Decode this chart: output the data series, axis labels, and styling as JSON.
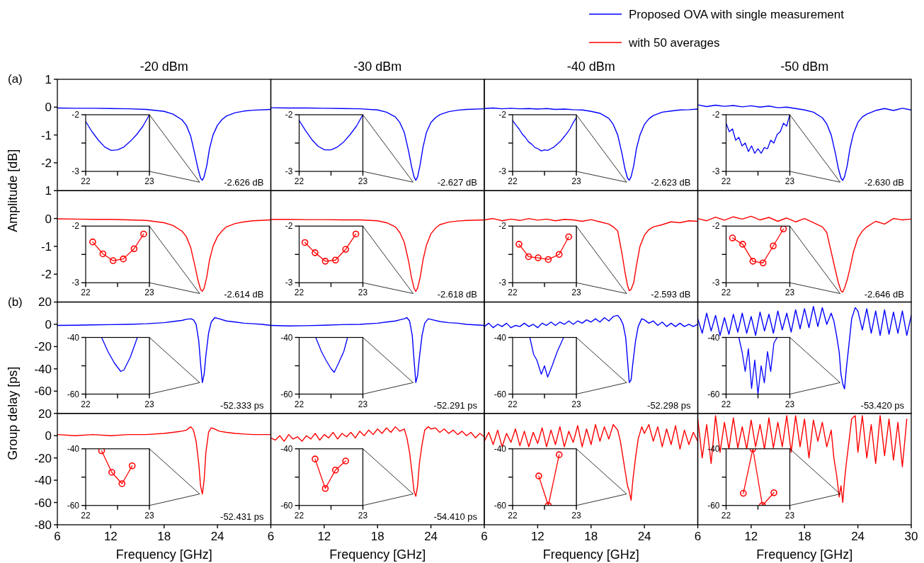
{
  "chart_data": [
    {
      "type": "line",
      "title": "-20 dBm",
      "ylabel": "Amplitude [dB]",
      "legend": "top right",
      "x": [
        6,
        8,
        10,
        12,
        14,
        16,
        18,
        19,
        20,
        20.5,
        21,
        21.5,
        21.8,
        22.1,
        22.3,
        22.5,
        22.8,
        23.1,
        23.5,
        24,
        24.5,
        25,
        26,
        27,
        28,
        30
      ],
      "series": [
        {
          "name": "Proposed OVA with single measurement",
          "color": "#0000ff",
          "values": [
            -0.03,
            -0.04,
            -0.04,
            -0.05,
            -0.06,
            -0.08,
            -0.15,
            -0.25,
            -0.45,
            -0.65,
            -1.05,
            -1.75,
            -2.2,
            -2.55,
            -2.626,
            -2.5,
            -2.1,
            -1.5,
            -1.0,
            -0.65,
            -0.45,
            -0.32,
            -0.2,
            -0.14,
            -0.11,
            -0.08
          ]
        }
      ],
      "xlim": [
        6,
        30
      ],
      "ylim": [
        -3,
        1
      ],
      "yticks": [
        1,
        0,
        -1,
        -2
      ],
      "tick_labels": "y",
      "annotations": [
        "(a)",
        "-2.626 dB"
      ]
    },
    {
      "type": "line",
      "x": [
        22,
        22.1,
        22.2,
        22.3,
        22.4,
        22.5,
        22.6,
        22.7,
        22.8,
        22.9,
        23
      ],
      "series": [
        {
          "color": "#0000ff",
          "values": [
            -2.12,
            -2.3,
            -2.45,
            -2.57,
            -2.63,
            -2.62,
            -2.57,
            -2.47,
            -2.35,
            -2.2,
            -2.0
          ]
        }
      ],
      "xlim": [
        22,
        23
      ],
      "ylim": [
        -3,
        -2
      ],
      "xticks": [
        22,
        23
      ],
      "yticks": [
        -2,
        -3
      ]
    },
    {
      "type": "line",
      "title": "-30 dBm",
      "x": [
        6,
        8,
        10,
        12,
        14,
        16,
        18,
        19,
        20,
        20.5,
        21,
        21.5,
        21.8,
        22.1,
        22.3,
        22.5,
        22.8,
        23.1,
        23.5,
        24,
        24.5,
        25,
        26,
        27,
        28,
        30
      ],
      "series": [
        {
          "color": "#0000ff",
          "values": [
            -0.02,
            -0.03,
            -0.03,
            -0.04,
            -0.05,
            -0.06,
            -0.1,
            -0.18,
            -0.35,
            -0.55,
            -0.9,
            -1.6,
            -2.1,
            -2.5,
            -2.627,
            -2.5,
            -2.05,
            -1.45,
            -0.9,
            -0.55,
            -0.38,
            -0.27,
            -0.16,
            -0.11,
            -0.08,
            -0.06
          ]
        }
      ],
      "xlim": [
        6,
        30
      ],
      "ylim": [
        -3,
        1
      ],
      "tick_labels": false,
      "annotations": [
        "-2.627 dB"
      ]
    },
    {
      "type": "line",
      "x": [
        22,
        22.1,
        22.2,
        22.3,
        22.4,
        22.5,
        22.6,
        22.7,
        22.8,
        22.9,
        23
      ],
      "series": [
        {
          "color": "#0000ff",
          "values": [
            -2.1,
            -2.28,
            -2.44,
            -2.56,
            -2.62,
            -2.62,
            -2.57,
            -2.48,
            -2.35,
            -2.2,
            -2.0
          ]
        }
      ],
      "xlim": [
        22,
        23
      ],
      "ylim": [
        -3,
        -2
      ],
      "xticks": [
        22,
        23
      ],
      "yticks": [
        -2,
        -3
      ]
    },
    {
      "type": "line",
      "title": "-40 dBm",
      "x": [
        6,
        7,
        8,
        9,
        10,
        11,
        12,
        13,
        14,
        15,
        16,
        17,
        18,
        19,
        20,
        20.5,
        21,
        21.5,
        21.8,
        22.1,
        22.3,
        22.5,
        22.8,
        23.1,
        23.5,
        24,
        24.5,
        25,
        26,
        27,
        28,
        29,
        30
      ],
      "series": [
        {
          "color": "#0000ff",
          "values": [
            -0.05,
            -0.03,
            -0.06,
            -0.04,
            -0.06,
            -0.05,
            -0.07,
            -0.05,
            -0.08,
            -0.07,
            -0.09,
            -0.1,
            -0.15,
            -0.22,
            -0.4,
            -0.62,
            -1.0,
            -1.7,
            -2.2,
            -2.55,
            -2.623,
            -2.5,
            -2.1,
            -1.5,
            -1.0,
            -0.62,
            -0.42,
            -0.3,
            -0.18,
            -0.14,
            -0.1,
            -0.09,
            -0.07
          ]
        }
      ],
      "xlim": [
        6,
        30
      ],
      "ylim": [
        -3,
        1
      ],
      "tick_labels": false,
      "annotations": [
        "-2.623 dB"
      ]
    },
    {
      "type": "line",
      "x": [
        22,
        22.05,
        22.1,
        22.15,
        22.2,
        22.25,
        22.3,
        22.35,
        22.4,
        22.45,
        22.5,
        22.55,
        22.6,
        22.65,
        22.7,
        22.75,
        22.8,
        22.85,
        22.9,
        22.95,
        23
      ],
      "series": [
        {
          "color": "#0000ff",
          "values": [
            -2.1,
            -2.18,
            -2.25,
            -2.34,
            -2.4,
            -2.48,
            -2.52,
            -2.58,
            -2.6,
            -2.64,
            -2.62,
            -2.63,
            -2.6,
            -2.57,
            -2.52,
            -2.47,
            -2.4,
            -2.33,
            -2.25,
            -2.14,
            -2.05
          ]
        }
      ],
      "xlim": [
        22,
        23
      ],
      "ylim": [
        -3,
        -2
      ],
      "xticks": [
        22,
        23
      ],
      "yticks": [
        -2,
        -3
      ]
    },
    {
      "type": "line",
      "title": "-50 dBm",
      "x": [
        6,
        7,
        8,
        9,
        10,
        11,
        12,
        13,
        14,
        15,
        16,
        17,
        18,
        19,
        20,
        20.5,
        21,
        21.5,
        21.8,
        22.1,
        22.3,
        22.5,
        22.8,
        23.1,
        23.5,
        24,
        24.5,
        25,
        26,
        27,
        28,
        29,
        30
      ],
      "series": [
        {
          "color": "#0000ff",
          "values": [
            0.08,
            0.02,
            0.07,
            0.03,
            0.06,
            0.01,
            0.05,
            0.0,
            0.04,
            -0.02,
            0.0,
            -0.05,
            -0.1,
            -0.18,
            -0.38,
            -0.6,
            -1.0,
            -1.7,
            -2.2,
            -2.55,
            -2.63,
            -2.5,
            -2.1,
            -1.5,
            -0.95,
            -0.55,
            -0.35,
            -0.25,
            -0.12,
            -0.05,
            -0.12,
            -0.04,
            -0.1
          ]
        }
      ],
      "xlim": [
        6,
        30
      ],
      "ylim": [
        -3,
        1
      ],
      "tick_labels": false,
      "annotations": [
        "-2.630 dB"
      ]
    },
    {
      "type": "line",
      "x": [
        22,
        22.05,
        22.1,
        22.15,
        22.2,
        22.25,
        22.3,
        22.35,
        22.4,
        22.45,
        22.5,
        22.55,
        22.6,
        22.65,
        22.7,
        22.75,
        22.8,
        22.85,
        22.9,
        22.95,
        23
      ],
      "series": [
        {
          "color": "#0000ff",
          "values": [
            -2.15,
            -2.3,
            -2.25,
            -2.45,
            -2.4,
            -2.55,
            -2.5,
            -2.65,
            -2.55,
            -2.68,
            -2.6,
            -2.68,
            -2.58,
            -2.6,
            -2.45,
            -2.5,
            -2.35,
            -2.3,
            -2.15,
            -2.2,
            -2.0
          ]
        }
      ],
      "xlim": [
        22,
        23
      ],
      "ylim": [
        -3,
        -2
      ],
      "xticks": [
        22,
        23
      ],
      "yticks": [
        -2,
        -3
      ]
    },
    {
      "type": "line",
      "legend": "top right",
      "x": [
        6,
        8,
        10,
        12,
        14,
        16,
        18,
        19,
        20,
        20.5,
        21,
        21.5,
        21.8,
        22.1,
        22.3,
        22.5,
        22.8,
        23.1,
        23.5,
        24,
        24.5,
        25,
        26,
        27,
        28,
        30
      ],
      "series": [
        {
          "name": "with 50 averages",
          "color": "#ff0000",
          "values": [
            -0.01,
            -0.02,
            -0.03,
            -0.03,
            -0.05,
            -0.07,
            -0.15,
            -0.25,
            -0.45,
            -0.65,
            -1.05,
            -1.75,
            -2.2,
            -2.55,
            -2.614,
            -2.5,
            -2.1,
            -1.5,
            -1.0,
            -0.65,
            -0.45,
            -0.3,
            -0.18,
            -0.12,
            -0.08,
            -0.05
          ]
        }
      ],
      "xlim": [
        6,
        30
      ],
      "ylim": [
        -3,
        1
      ],
      "yticks": [
        1,
        0,
        -1,
        -2
      ],
      "tick_labels": "y",
      "annotations": [
        "-2.614 dB"
      ]
    },
    {
      "type": "line",
      "marker": "circle",
      "x": [
        22.11,
        22.27,
        22.43,
        22.59,
        22.76,
        22.91
      ],
      "series": [
        {
          "color": "#ff0000",
          "values": [
            -2.28,
            -2.49,
            -2.61,
            -2.58,
            -2.4,
            -2.14
          ]
        }
      ],
      "xlim": [
        22,
        23
      ],
      "ylim": [
        -3,
        -2
      ],
      "xticks": [
        22,
        23
      ],
      "yticks": [
        -2,
        -3
      ]
    },
    {
      "type": "line",
      "x": [
        6,
        8,
        10,
        12,
        14,
        16,
        18,
        19,
        20,
        20.5,
        21,
        21.5,
        21.8,
        22.1,
        22.3,
        22.5,
        22.8,
        23.1,
        23.5,
        24,
        24.5,
        25,
        26,
        27,
        28,
        30
      ],
      "series": [
        {
          "color": "#ff0000",
          "values": [
            -0.03,
            -0.03,
            -0.04,
            -0.04,
            -0.05,
            -0.05,
            -0.08,
            -0.15,
            -0.3,
            -0.5,
            -0.85,
            -1.55,
            -2.1,
            -2.5,
            -2.618,
            -2.5,
            -2.1,
            -1.5,
            -0.95,
            -0.55,
            -0.35,
            -0.22,
            -0.13,
            -0.09,
            -0.07,
            -0.05
          ]
        }
      ],
      "xlim": [
        6,
        30
      ],
      "ylim": [
        -3,
        1
      ],
      "tick_labels": false,
      "annotations": [
        "-2.618 dB"
      ]
    },
    {
      "type": "line",
      "marker": "circle",
      "x": [
        22.09,
        22.25,
        22.41,
        22.57,
        22.73,
        22.89
      ],
      "series": [
        {
          "color": "#ff0000",
          "values": [
            -2.29,
            -2.47,
            -2.62,
            -2.6,
            -2.41,
            -2.14
          ]
        }
      ],
      "xlim": [
        22,
        23
      ],
      "ylim": [
        -3,
        -2
      ],
      "xticks": [
        22,
        23
      ],
      "yticks": [
        -2,
        -3
      ]
    },
    {
      "type": "line",
      "x": [
        6,
        7,
        8,
        9,
        10,
        11,
        12,
        13,
        14,
        15,
        16,
        17,
        18,
        19,
        20,
        20.5,
        21,
        21.5,
        21.8,
        22.1,
        22.3,
        22.5,
        22.8,
        23.1,
        23.5,
        24,
        24.5,
        25,
        26,
        27,
        28,
        29,
        30
      ],
      "series": [
        {
          "color": "#ff0000",
          "values": [
            -0.05,
            0.0,
            -0.08,
            -0.02,
            -0.07,
            0.0,
            -0.06,
            -0.02,
            -0.08,
            -0.03,
            -0.05,
            -0.1,
            -0.04,
            -0.12,
            -0.2,
            -0.3,
            -0.45,
            -1.3,
            -1.9,
            -2.4,
            -2.593,
            -2.55,
            -2.3,
            -1.7,
            -1.0,
            -0.6,
            -0.4,
            -0.3,
            -0.22,
            -0.12,
            -0.15,
            -0.08,
            -0.1
          ]
        }
      ],
      "xlim": [
        6,
        30
      ],
      "ylim": [
        -3,
        1
      ],
      "tick_labels": false,
      "annotations": [
        "-2.593 dB"
      ]
    },
    {
      "type": "line",
      "marker": "circle",
      "x": [
        22.1,
        22.25,
        22.4,
        22.56,
        22.73,
        22.88
      ],
      "series": [
        {
          "color": "#ff0000",
          "values": [
            -2.32,
            -2.54,
            -2.56,
            -2.59,
            -2.5,
            -2.19
          ]
        }
      ],
      "xlim": [
        22,
        23
      ],
      "ylim": [
        -3,
        -2
      ],
      "xticks": [
        22,
        23
      ],
      "yticks": [
        -2,
        -3
      ]
    },
    {
      "type": "line",
      "x": [
        6,
        7,
        8,
        9,
        10,
        11,
        12,
        13,
        14,
        15,
        16,
        17,
        18,
        19,
        20,
        20.5,
        21,
        21.5,
        21.8,
        22.1,
        22.3,
        22.5,
        22.8,
        23.1,
        23.5,
        24,
        24.5,
        25,
        26,
        27,
        28,
        29,
        30
      ],
      "series": [
        {
          "color": "#ff0000",
          "values": [
            0.0,
            -0.08,
            0.05,
            -0.06,
            0.06,
            -0.02,
            0.08,
            -0.05,
            0.04,
            -0.1,
            0.02,
            -0.12,
            0.0,
            -0.15,
            -0.3,
            -0.5,
            -1.2,
            -1.9,
            -2.3,
            -2.6,
            -2.646,
            -2.5,
            -2.2,
            -1.8,
            -1.2,
            -0.7,
            -0.45,
            -0.3,
            -0.1,
            -0.2,
            0.0,
            -0.05,
            -0.02
          ]
        }
      ],
      "xlim": [
        6,
        30
      ],
      "ylim": [
        -3,
        1
      ],
      "tick_labels": false,
      "annotations": [
        "-2.646 dB"
      ]
    },
    {
      "type": "line",
      "marker": "circle",
      "x": [
        22.1,
        22.26,
        22.42,
        22.58,
        22.74,
        22.9
      ],
      "series": [
        {
          "color": "#ff0000",
          "values": [
            -2.21,
            -2.32,
            -2.62,
            -2.65,
            -2.35,
            -2.05
          ]
        }
      ],
      "xlim": [
        22,
        23
      ],
      "ylim": [
        -3,
        -2
      ],
      "xticks": [
        22,
        23
      ],
      "yticks": [
        -2,
        -3
      ]
    },
    {
      "type": "line",
      "ylabel": "Group delay [ps]",
      "x": [
        6,
        8,
        10,
        12,
        14,
        16,
        18,
        19,
        20,
        20.5,
        21,
        21.3,
        21.6,
        21.9,
        22.1,
        22.3,
        22.5,
        22.7,
        23,
        23.3,
        23.7,
        24.2,
        25,
        26,
        27,
        28,
        29,
        30
      ],
      "series": [
        {
          "color": "#0000ff",
          "values": [
            -1,
            -0.8,
            -0.5,
            -0.3,
            0,
            0.5,
            1.5,
            2.5,
            3.5,
            4.5,
            5,
            4,
            0,
            -15,
            -35,
            -52.333,
            -45,
            -28,
            -8,
            2,
            6,
            5,
            3,
            2,
            1,
            0.5,
            0,
            -1
          ]
        }
      ],
      "xlim": [
        6,
        30
      ],
      "ylim": [
        -80,
        20
      ],
      "yticks": [
        20,
        0,
        -20,
        -40,
        -60
      ],
      "tick_labels": "y",
      "annotations": [
        "(b)",
        "-52.333 ps"
      ]
    },
    {
      "type": "line",
      "x": [
        22.25,
        22.35,
        22.45,
        22.55,
        22.6,
        22.7,
        22.78,
        22.81
      ],
      "series": [
        {
          "color": "#0000ff",
          "values": [
            -40,
            -45,
            -49,
            -52,
            -51.5,
            -47,
            -42,
            -40
          ]
        }
      ],
      "xlim": [
        22,
        23
      ],
      "ylim": [
        -60,
        -40
      ],
      "xticks": [
        22,
        23
      ],
      "yticks": [
        -40,
        -60
      ]
    },
    {
      "type": "line",
      "x": [
        6,
        8,
        10,
        12,
        14,
        16,
        18,
        19,
        20,
        20.5,
        21,
        21.3,
        21.6,
        21.9,
        22.1,
        22.3,
        22.5,
        22.7,
        23,
        23.3,
        23.7,
        24.2,
        25,
        26,
        27,
        28,
        29,
        30
      ],
      "series": [
        {
          "color": "#0000ff",
          "values": [
            -1,
            -1.5,
            -1.2,
            -0.8,
            -0.3,
            0,
            1,
            2,
            3,
            4,
            5,
            6,
            3,
            -10,
            -32,
            -52.291,
            -46,
            -30,
            -10,
            1,
            5,
            4,
            2.5,
            1.5,
            1,
            0,
            -0.5,
            -1
          ]
        }
      ],
      "xlim": [
        6,
        30
      ],
      "ylim": [
        -80,
        20
      ],
      "tick_labels": false,
      "annotations": [
        "-52.291 ps"
      ]
    },
    {
      "type": "line",
      "x": [
        22.26,
        22.35,
        22.42,
        22.5,
        22.55,
        22.62,
        22.7,
        22.76
      ],
      "series": [
        {
          "color": "#0000ff",
          "values": [
            -40,
            -45,
            -48,
            -51,
            -52.3,
            -49,
            -45,
            -40
          ]
        }
      ],
      "xlim": [
        22,
        23
      ],
      "ylim": [
        -60,
        -40
      ],
      "xticks": [
        22,
        23
      ],
      "yticks": [
        -40,
        -60
      ]
    },
    {
      "type": "line",
      "x": [
        6,
        6.5,
        7,
        7.5,
        8,
        8.5,
        9,
        9.5,
        10,
        10.5,
        11,
        11.5,
        12,
        12.5,
        13,
        13.5,
        14,
        14.5,
        15,
        15.5,
        16,
        16.5,
        17,
        17.5,
        18,
        18.5,
        19,
        19.5,
        20,
        20.5,
        21,
        21.3,
        21.6,
        21.9,
        22.1,
        22.3,
        22.5,
        22.7,
        23,
        23.3,
        23.7,
        24,
        24.5,
        25,
        25.5,
        26,
        26.5,
        27,
        27.5,
        28,
        28.5,
        29,
        29.5,
        30
      ],
      "series": [
        {
          "color": "#0000ff",
          "values": [
            -2,
            1,
            -3,
            0,
            -2,
            1,
            -3,
            -1,
            -2,
            1,
            -2,
            0,
            -3,
            1,
            -1,
            2,
            -1,
            2,
            0,
            3,
            0,
            3,
            1,
            4,
            2,
            5,
            2,
            6,
            3,
            7,
            8,
            5,
            0,
            -12,
            -32,
            -52.298,
            -50,
            -35,
            -15,
            -2,
            5,
            4,
            1,
            3,
            -1,
            2,
            -2,
            1,
            -2,
            1,
            -2,
            0,
            -2,
            0
          ]
        }
      ],
      "xlim": [
        6,
        30
      ],
      "ylim": [
        -80,
        20
      ],
      "tick_labels": false,
      "annotations": [
        "-52.298 ps"
      ]
    },
    {
      "type": "line",
      "x": [
        22.27,
        22.33,
        22.38,
        22.45,
        22.5,
        22.55,
        22.62,
        22.7,
        22.8
      ],
      "series": [
        {
          "color": "#0000ff",
          "values": [
            -40,
            -46,
            -48,
            -53,
            -50,
            -54,
            -50,
            -45,
            -40
          ]
        }
      ],
      "xlim": [
        22,
        23
      ],
      "ylim": [
        -60,
        -40
      ],
      "xticks": [
        22,
        23
      ],
      "yticks": [
        -40,
        -60
      ]
    },
    {
      "type": "line",
      "x": [
        6,
        6.5,
        7,
        7.5,
        8,
        8.5,
        9,
        9.5,
        10,
        10.5,
        11,
        11.5,
        12,
        12.5,
        13,
        13.5,
        14,
        14.5,
        15,
        15.5,
        16,
        16.5,
        17,
        17.5,
        18,
        18.5,
        19,
        19.5,
        20,
        20.5,
        21,
        21.3,
        21.6,
        21.9,
        22.1,
        22.3,
        22.5,
        22.7,
        23,
        23.3,
        23.7,
        24,
        24.5,
        25,
        25.5,
        26,
        26.5,
        27,
        27.5,
        28,
        28.5,
        29,
        29.5,
        30
      ],
      "series": [
        {
          "color": "#0000ff",
          "values": [
            5,
            -8,
            10,
            -6,
            8,
            -10,
            6,
            -9,
            9,
            -7,
            10,
            -8,
            7,
            -10,
            11,
            -6,
            9,
            -8,
            12,
            -5,
            10,
            -7,
            13,
            -4,
            14,
            -3,
            16,
            -2,
            15,
            0,
            10,
            3,
            -10,
            -25,
            -45,
            -53.42,
            -58,
            -40,
            -18,
            5,
            15,
            12,
            -5,
            14,
            -8,
            12,
            -10,
            13,
            -9,
            11,
            -8,
            12,
            -10,
            8
          ]
        }
      ],
      "xlim": [
        6,
        30
      ],
      "ylim": [
        -80,
        20
      ],
      "tick_labels": false,
      "annotations": [
        "-53.420 ps"
      ]
    },
    {
      "type": "line",
      "x": [
        22.2,
        22.25,
        22.3,
        22.35,
        22.4,
        22.45,
        22.5,
        22.55,
        22.6,
        22.65,
        22.7,
        22.75,
        22.8
      ],
      "series": [
        {
          "color": "#0000ff",
          "values": [
            -40,
            -45,
            -52,
            -44,
            -58,
            -48,
            -60,
            -50,
            -56,
            -45,
            -52,
            -42,
            -40
          ]
        }
      ],
      "xlim": [
        22,
        23
      ],
      "ylim": [
        -60,
        -40
      ],
      "xticks": [
        22,
        23
      ],
      "yticks": [
        -40,
        -60
      ]
    },
    {
      "type": "line",
      "xlabel": "Frequency [GHz]",
      "x": [
        6,
        8,
        10,
        12,
        14,
        16,
        18,
        19,
        20,
        20.5,
        21,
        21.3,
        21.6,
        21.9,
        22.1,
        22.3,
        22.5,
        22.7,
        23,
        23.3,
        23.7,
        24.2,
        25,
        26,
        27,
        28,
        29,
        30
      ],
      "series": [
        {
          "color": "#ff0000",
          "values": [
            1,
            0,
            1,
            0,
            1,
            1,
            2,
            3,
            4,
            5,
            8,
            5,
            -5,
            -25,
            -45,
            -52.431,
            -40,
            -15,
            3,
            7,
            6,
            4,
            3,
            2,
            1.5,
            1,
            1,
            1
          ]
        }
      ],
      "xlim": [
        6,
        30
      ],
      "ylim": [
        -80,
        20
      ],
      "xticks": [
        6,
        12,
        18,
        24
      ],
      "yticks": [
        20,
        0,
        -20,
        -40,
        -60,
        -80
      ],
      "annotations": [
        "-52.431 ps"
      ]
    },
    {
      "type": "line",
      "marker": "circle",
      "x": [
        22.25,
        22.41,
        22.57,
        22.73
      ],
      "series": [
        {
          "color": "#ff0000",
          "values": [
            -40.7,
            -48.3,
            -52.3,
            -46
          ]
        }
      ],
      "xlim": [
        22,
        23
      ],
      "ylim": [
        -60,
        -40
      ],
      "xticks": [
        22,
        23
      ],
      "yticks": [
        -40,
        -60
      ]
    },
    {
      "type": "line",
      "xlabel": "Frequency [GHz]",
      "x": [
        6,
        6.5,
        7,
        7.5,
        8,
        8.5,
        9,
        9.5,
        10,
        10.5,
        11,
        11.5,
        12,
        12.5,
        13,
        13.5,
        14,
        14.5,
        15,
        15.5,
        16,
        16.5,
        17,
        17.5,
        18,
        18.5,
        19,
        19.5,
        20,
        20.5,
        21,
        21.3,
        21.6,
        21.9,
        22.1,
        22.3,
        22.5,
        22.7,
        23,
        23.3,
        23.7,
        24,
        24.5,
        25,
        25.5,
        26,
        26.5,
        27,
        27.5,
        28,
        28.5,
        29,
        29.5,
        30
      ],
      "series": [
        {
          "color": "#ff0000",
          "values": [
            -2,
            -4,
            0,
            -5,
            1,
            -3,
            -1,
            -5,
            0,
            -3,
            2,
            -4,
            1,
            -2,
            3,
            -3,
            2,
            -1,
            3,
            -2,
            4,
            0,
            5,
            1,
            6,
            2,
            7,
            3,
            8,
            4,
            6,
            -2,
            -15,
            -35,
            -50,
            -54.41,
            -45,
            -25,
            -8,
            5,
            8,
            6,
            7,
            3,
            6,
            2,
            5,
            1,
            4,
            0,
            3,
            -2,
            2,
            -1
          ]
        }
      ],
      "xlim": [
        6,
        30
      ],
      "ylim": [
        -80,
        20
      ],
      "xticks": [
        6,
        12,
        18,
        24
      ],
      "tick_labels": "x",
      "annotations": [
        "-54.410 ps"
      ]
    },
    {
      "type": "line",
      "marker": "circle",
      "x": [
        22.25,
        22.41,
        22.57,
        22.73
      ],
      "series": [
        {
          "color": "#ff0000",
          "values": [
            -43.6,
            -54,
            -47.5,
            -44.3
          ]
        }
      ],
      "xlim": [
        22,
        23
      ],
      "ylim": [
        -60,
        -40
      ],
      "xticks": [
        22,
        23
      ],
      "yticks": [
        -40,
        -60
      ]
    },
    {
      "type": "line",
      "xlabel": "Frequency [GHz]",
      "x": [
        6,
        6.5,
        7,
        7.5,
        8,
        8.5,
        9,
        9.5,
        10,
        10.5,
        11,
        11.5,
        12,
        12.5,
        13,
        13.5,
        14,
        14.5,
        15,
        15.5,
        16,
        16.5,
        17,
        17.5,
        18,
        18.5,
        19,
        19.5,
        20,
        20.5,
        21,
        21.3,
        21.6,
        21.9,
        22.1,
        22.3,
        22.5,
        22.7,
        23,
        23.3,
        23.7,
        24,
        24.5,
        25,
        25.5,
        26,
        26.5,
        27,
        27.5,
        28,
        28.5,
        29,
        29.5,
        30
      ],
      "series": [
        {
          "color": "#ff0000",
          "values": [
            -5,
            3,
            -8,
            5,
            -10,
            2,
            -6,
            6,
            -9,
            4,
            -10,
            3,
            -7,
            7,
            -10,
            5,
            -8,
            8,
            -10,
            4,
            -6,
            9,
            -10,
            6,
            -8,
            10,
            -5,
            8,
            -3,
            10,
            5,
            -5,
            -20,
            -35,
            -45,
            -50,
            -58,
            -40,
            -20,
            -3,
            8,
            2,
            10,
            -5,
            8,
            -10,
            6,
            -8,
            9,
            -12,
            5,
            -8,
            3,
            -5
          ]
        }
      ],
      "xlim": [
        6,
        30
      ],
      "ylim": [
        -80,
        20
      ],
      "xticks": [
        6,
        12,
        18,
        24
      ],
      "tick_labels": "x"
    },
    {
      "type": "line",
      "marker": "circle",
      "x": [
        22.41,
        22.56,
        22.73
      ],
      "series": [
        {
          "color": "#ff0000",
          "values": [
            -49.6,
            -60,
            -42.1
          ]
        }
      ],
      "xlim": [
        22,
        23
      ],
      "ylim": [
        -60,
        -40
      ],
      "xticks": [
        22,
        23
      ],
      "yticks": [
        -40,
        -60
      ]
    },
    {
      "type": "line",
      "xlabel": "Frequency [GHz]",
      "x": [
        6,
        6.5,
        7,
        7.5,
        8,
        8.5,
        9,
        9.5,
        10,
        10.5,
        11,
        11.5,
        12,
        12.5,
        13,
        13.5,
        14,
        14.5,
        15,
        15.5,
        16,
        16.5,
        17,
        17.5,
        18,
        18.5,
        19,
        19.5,
        20,
        20.5,
        21,
        21.3,
        21.6,
        21.9,
        22.1,
        22.3,
        22.5,
        22.7,
        23,
        23.3,
        23.7,
        24,
        24.5,
        25,
        25.5,
        26,
        26.5,
        27,
        27.5,
        28,
        28.5,
        29,
        29.5
      ],
      "series": [
        {
          "color": "#ff0000",
          "values": [
            15,
            -20,
            10,
            -25,
            18,
            -15,
            12,
            -12,
            16,
            -11,
            8,
            -12,
            14,
            -10,
            10,
            -12,
            16,
            -11,
            12,
            -10,
            18,
            -15,
            18,
            -10,
            15,
            -20,
            14,
            -5,
            12,
            -10,
            5,
            -20,
            -35,
            -55,
            -45,
            -60,
            -40,
            -25,
            -5,
            15,
            18,
            -15,
            18,
            -20,
            10,
            -25,
            18,
            -18,
            15,
            -22,
            12,
            -28,
            15
          ]
        }
      ],
      "xlim": [
        6,
        30
      ],
      "ylim": [
        -80,
        20
      ],
      "xticks": [
        6,
        12,
        18,
        24,
        30
      ],
      "tick_labels": "x"
    },
    {
      "type": "line",
      "marker": "circle",
      "x": [
        22.27,
        22.42,
        22.57,
        22.75
      ],
      "series": [
        {
          "color": "#ff0000",
          "values": [
            -55.7,
            -40,
            -60,
            -55.5
          ]
        }
      ],
      "xlim": [
        22,
        23
      ],
      "ylim": [
        -60,
        -40
      ],
      "xticks": [
        22,
        23
      ],
      "yticks": [
        -40,
        -60
      ]
    }
  ]
}
